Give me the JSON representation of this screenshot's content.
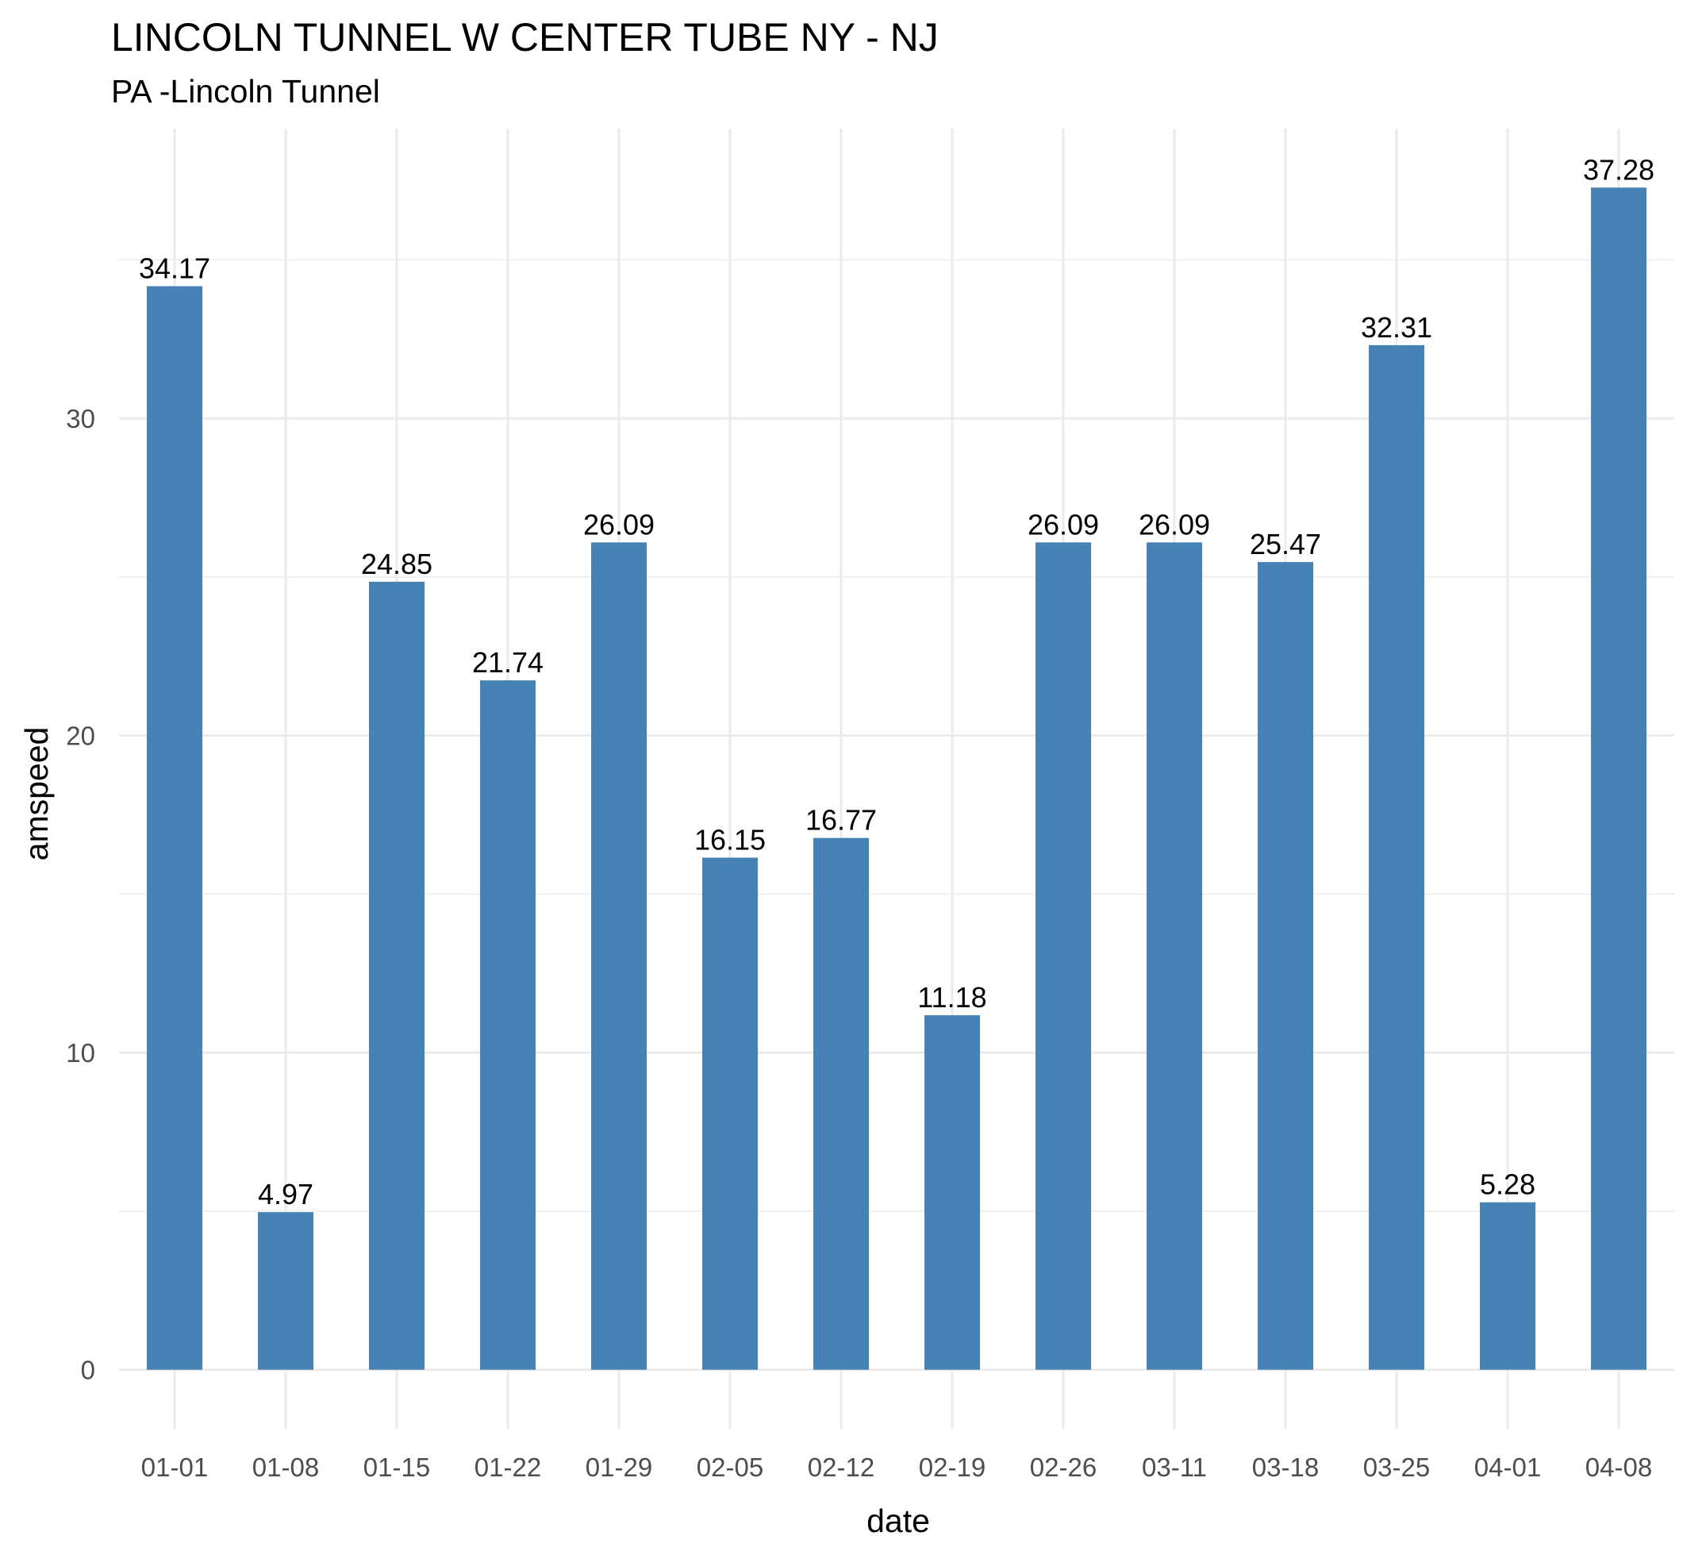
{
  "chart_data": {
    "type": "bar",
    "title": "LINCOLN TUNNEL W CENTER TUBE NY - NJ",
    "subtitle": "PA -Lincoln Tunnel",
    "xlabel": "date",
    "ylabel": "amspeed",
    "categories": [
      "01-01",
      "01-08",
      "01-15",
      "01-22",
      "01-29",
      "02-05",
      "02-12",
      "02-19",
      "02-26",
      "03-11",
      "03-18",
      "03-25",
      "04-01",
      "04-08"
    ],
    "values": [
      34.17,
      4.97,
      24.85,
      21.74,
      26.09,
      16.15,
      16.77,
      11.18,
      26.09,
      26.09,
      25.47,
      32.31,
      5.28,
      37.28
    ],
    "data_labels": [
      "34.17",
      "4.97",
      "24.85",
      "21.74",
      "26.09",
      "16.15",
      "16.77",
      "11.18",
      "26.09",
      "26.09",
      "25.47",
      "32.31",
      "5.28",
      "37.28"
    ],
    "yticks": [
      0,
      10,
      20,
      30
    ],
    "ylim": [
      -1.86,
      39.14
    ],
    "grid": true,
    "bar_color": "#4682B4",
    "grid_color": "#EBEBEB",
    "legend": "none"
  }
}
